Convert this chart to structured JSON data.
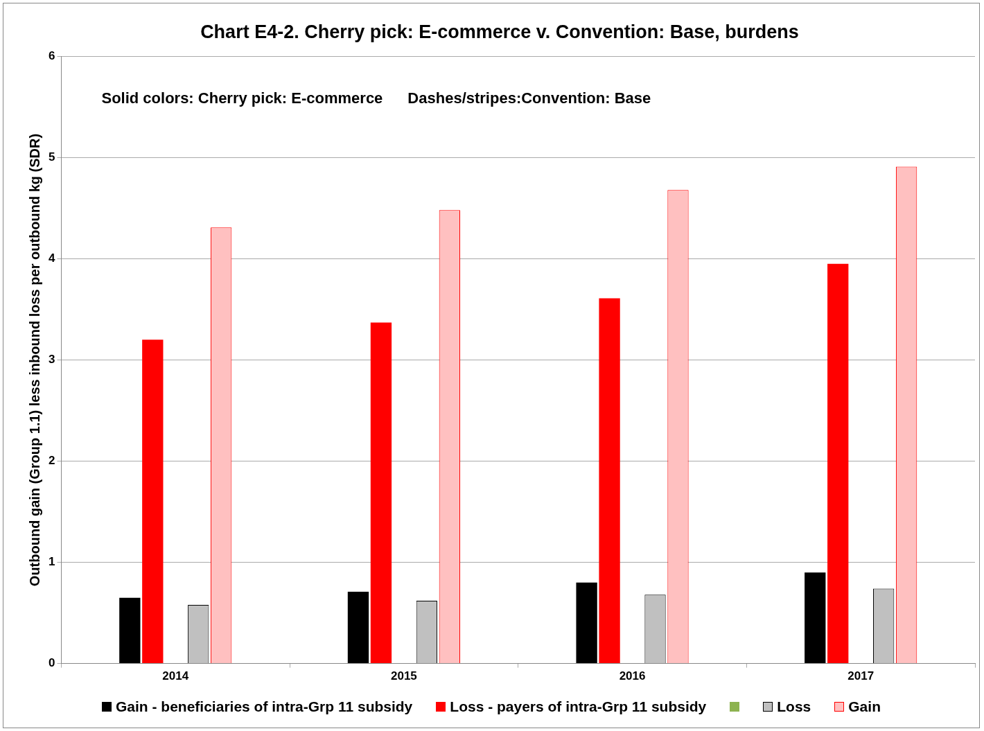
{
  "chart_data": {
    "type": "bar",
    "title": "Chart E4-2. Cherry pick: E-commerce v. Convention: Base, burdens",
    "ylabel": "Outbound gain (Group 1.1) less inbound loss per outbound kg (SDR)",
    "annotations": [
      "Solid colors: Cherry pick: E-commerce",
      "Dashes/stripes:Convention: Base"
    ],
    "categories": [
      "2014",
      "2015",
      "2016",
      "2017"
    ],
    "series": [
      {
        "name": "Gain - beneficiaries of intra-Grp 11 subsidy",
        "color": "#000000",
        "values": [
          0.65,
          0.71,
          0.8,
          0.9
        ]
      },
      {
        "name": "Loss - payers of intra-Grp 11 subsidy",
        "color": "#ff0000",
        "values": [
          3.2,
          3.37,
          3.61,
          3.95
        ]
      },
      {
        "color": "#8db350",
        "values": [
          null,
          null,
          null,
          null
        ]
      },
      {
        "name": "Loss",
        "color": "#c0c0c0",
        "line_style": "dashed",
        "values": [
          0.58,
          0.62,
          0.68,
          0.74
        ]
      },
      {
        "name": "Gain",
        "color": "#ffc0c0",
        "line_style": "dashed",
        "values": [
          4.31,
          4.48,
          4.68,
          4.91
        ]
      }
    ],
    "ylim": [
      0,
      6
    ],
    "yticks": [
      0,
      1,
      2,
      3,
      4,
      5,
      6
    ],
    "grid": "y",
    "legend": "bottom"
  }
}
